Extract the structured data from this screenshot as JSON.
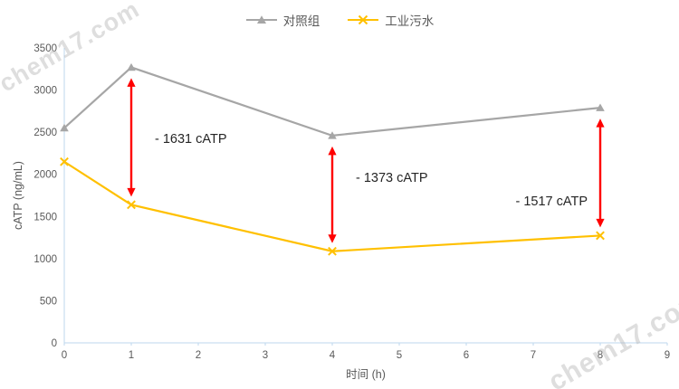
{
  "watermark": {
    "text": "chem17.com"
  },
  "chart_data": {
    "type": "line",
    "x": [
      0,
      1,
      4,
      8
    ],
    "series": [
      {
        "name": "对照组",
        "color": "#a6a6a6",
        "marker": "triangle",
        "values": [
          2550,
          3270,
          2460,
          2790
        ]
      },
      {
        "name": "工业污水",
        "color": "#ffc000",
        "marker": "x",
        "values": [
          2150,
          1639,
          1087,
          1273
        ]
      }
    ],
    "title": "",
    "xlabel": "时间 (h)",
    "ylabel": "cATP (ng/mL)",
    "xlim": [
      0,
      9
    ],
    "ylim": [
      0,
      3500
    ],
    "xticks": [
      0,
      1,
      2,
      3,
      4,
      5,
      6,
      7,
      8,
      9
    ],
    "yticks": [
      0,
      500,
      1000,
      1500,
      2000,
      2500,
      3000,
      3500
    ],
    "grid": false,
    "legend_position": "top-center",
    "axis_color": "#bdd7ee",
    "tick_label_color": "#595959",
    "annotation_text_color": "#262626",
    "annotations": [
      {
        "x": 1,
        "text": "- 1631 cATP",
        "label_value": 2425,
        "side": "right",
        "arrow_color": "#ff0000"
      },
      {
        "x": 4,
        "text": "- 1373 cATP",
        "label_value": 1965,
        "side": "right",
        "arrow_color": "#ff0000"
      },
      {
        "x": 8,
        "text": "- 1517 cATP",
        "label_value": 1685,
        "side": "left",
        "arrow_color": "#ff0000"
      }
    ]
  }
}
